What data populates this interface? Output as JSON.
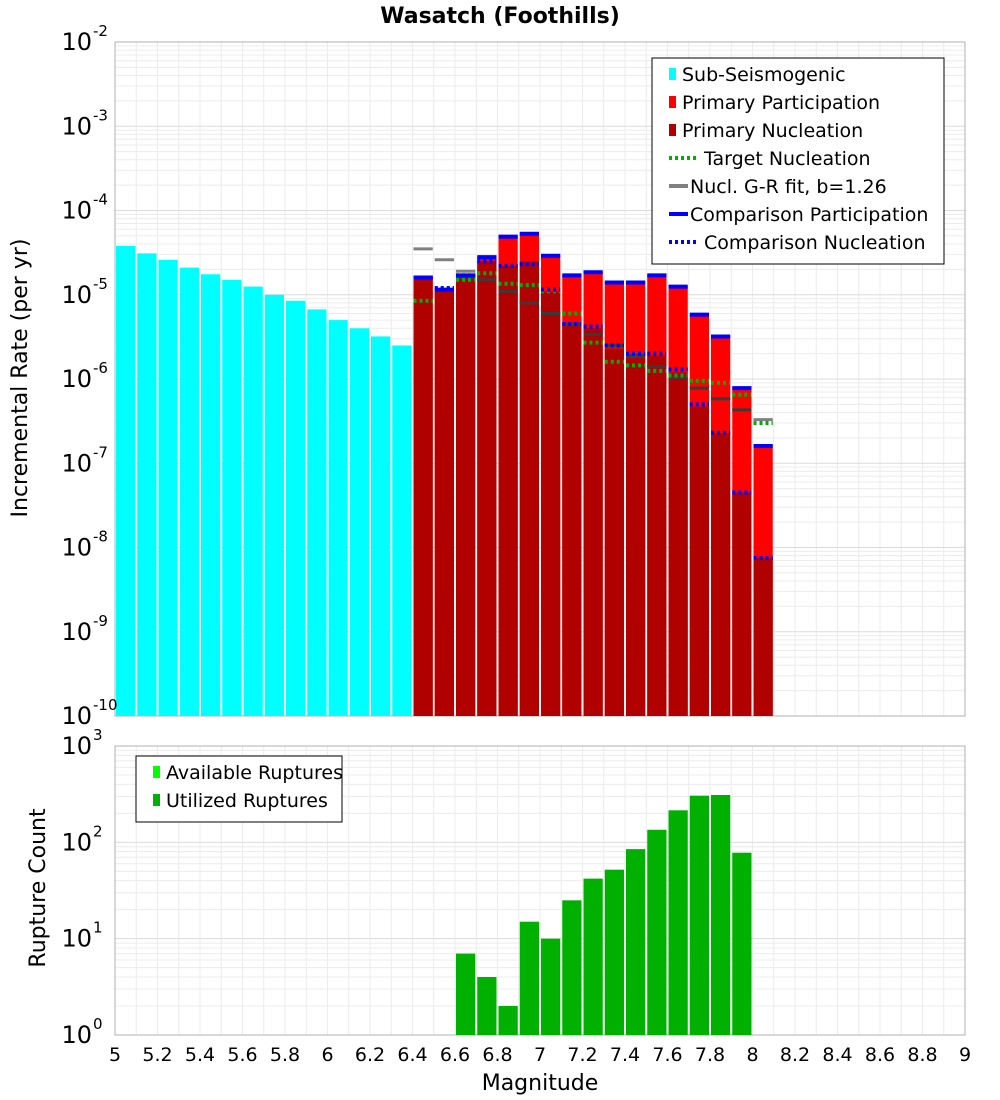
{
  "chart_data": [
    {
      "type": "bar",
      "title": "Wasatch (Foothills)",
      "xlabel": "",
      "ylabel": "Incremental Rate (per yr)",
      "y_scale": "log",
      "ylim": [
        1e-10,
        0.01
      ],
      "xlim": [
        5,
        9
      ],
      "bin_width": 0.1,
      "y_ticks": [
        {
          "base": "10",
          "exp": "-10"
        },
        {
          "base": "10",
          "exp": "-9"
        },
        {
          "base": "10",
          "exp": "-8"
        },
        {
          "base": "10",
          "exp": "-7"
        },
        {
          "base": "10",
          "exp": "-6"
        },
        {
          "base": "10",
          "exp": "-5"
        },
        {
          "base": "10",
          "exp": "-4"
        },
        {
          "base": "10",
          "exp": "-3"
        },
        {
          "base": "10",
          "exp": "-2"
        }
      ],
      "legend_position": "top-right",
      "legend": [
        {
          "label": "Sub-Seismogenic",
          "color": "#00ffff",
          "style": "bar"
        },
        {
          "label": "Primary Participation",
          "color": "#ff0000",
          "style": "bar"
        },
        {
          "label": "Primary Nucleation",
          "color": "#b00000",
          "style": "bar"
        },
        {
          "label": "Target Nucleation",
          "color": "#00b000",
          "style": "dotted"
        },
        {
          "label": "Nucl. G-R fit, b=1.26",
          "color": "#808080",
          "style": "solid"
        },
        {
          "label": "Comparison Participation",
          "color": "#0000ff",
          "style": "solid"
        },
        {
          "label": "Comparison Nucleation",
          "color": "#0000ff",
          "style": "dotted"
        }
      ],
      "series": [
        {
          "name": "Sub-Seismogenic",
          "x": [
            5.0,
            5.1,
            5.2,
            5.3,
            5.4,
            5.5,
            5.6,
            5.7,
            5.8,
            5.9,
            6.0,
            6.1,
            6.2,
            6.3
          ],
          "values": [
            3.8e-05,
            3.1e-05,
            2.6e-05,
            2.1e-05,
            1.75e-05,
            1.5e-05,
            1.25e-05,
            1e-05,
            8.5e-06,
            6.7e-06,
            5e-06,
            4e-06,
            3.2e-06,
            2.5e-06
          ]
        },
        {
          "name": "Primary Participation",
          "x": [
            6.4,
            6.5,
            6.6,
            6.7,
            6.8,
            6.9,
            7.0,
            7.1,
            7.2,
            7.3,
            7.4,
            7.5,
            7.6,
            7.7,
            7.8,
            7.9,
            8.0
          ],
          "values": [
            1.6e-05,
            1.15e-05,
            1.7e-05,
            2.8e-05,
            4.9e-05,
            5.3e-05,
            2.9e-05,
            1.7e-05,
            1.85e-05,
            1.4e-05,
            1.4e-05,
            1.7e-05,
            1.25e-05,
            5.8e-06,
            3.2e-06,
            7.8e-07,
            1.6e-07
          ]
        },
        {
          "name": "Primary Nucleation",
          "x": [
            6.4,
            6.5,
            6.6,
            6.7,
            6.8,
            6.9,
            7.0,
            7.1,
            7.2,
            7.3,
            7.4,
            7.5,
            7.6,
            7.7,
            7.8,
            7.9,
            8.0
          ],
          "values": [
            1.6e-05,
            1.1e-05,
            1.6e-05,
            2.5e-05,
            2.2e-05,
            2.5e-05,
            1.1e-05,
            4.3e-06,
            4e-06,
            2.3e-06,
            1.8e-06,
            1.9e-06,
            1.2e-06,
            4.7e-07,
            2.3e-07,
            4.5e-08,
            7.5e-09
          ]
        },
        {
          "name": "Target Nucleation",
          "x": [
            6.4,
            6.5,
            6.6,
            6.7,
            6.8,
            6.9,
            7.0,
            7.1,
            7.2,
            7.3,
            7.4,
            7.5,
            7.6,
            7.7,
            7.8,
            7.9,
            8.0
          ],
          "values": [
            8.5e-06,
            1.2e-05,
            1.5e-05,
            1.8e-05,
            1.35e-05,
            1.3e-05,
            1.1e-05,
            6e-06,
            2.7e-06,
            1.6e-06,
            1.45e-06,
            1.25e-06,
            1.1e-06,
            9.5e-07,
            9e-07,
            6.5e-07,
            3e-07
          ]
        },
        {
          "name": "Nucl. G-R fit, b=1.26",
          "x": [
            6.4,
            6.5,
            6.6,
            6.7,
            6.8,
            6.9,
            7.0,
            7.1,
            7.2,
            7.3,
            7.4,
            7.5,
            7.6,
            7.7,
            7.8,
            7.9,
            8.0
          ],
          "values": [
            3.5e-05,
            2.6e-05,
            1.9e-05,
            1.5e-05,
            1.1e-05,
            8e-06,
            6e-06,
            4.5e-06,
            3.4e-06,
            2.5e-06,
            1.9e-06,
            1.4e-06,
            1.05e-06,
            7.8e-07,
            5.8e-07,
            4.3e-07,
            3.3e-07
          ]
        },
        {
          "name": "Comparison Participation",
          "x": [
            6.4,
            6.5,
            6.6,
            6.7,
            6.8,
            6.9,
            7.0,
            7.1,
            7.2,
            7.3,
            7.4,
            7.5,
            7.6,
            7.7,
            7.8,
            7.9,
            8.0
          ],
          "values": [
            1.6e-05,
            1.15e-05,
            1.7e-05,
            2.8e-05,
            4.9e-05,
            5.3e-05,
            2.9e-05,
            1.7e-05,
            1.85e-05,
            1.4e-05,
            1.4e-05,
            1.7e-05,
            1.25e-05,
            5.8e-06,
            3.2e-06,
            7.8e-07,
            1.6e-07
          ]
        },
        {
          "name": "Comparison Nucleation",
          "x": [
            6.4,
            6.5,
            6.6,
            6.7,
            6.8,
            6.9,
            7.0,
            7.1,
            7.2,
            7.3,
            7.4,
            7.5,
            7.6,
            7.7,
            7.8,
            7.9,
            8.0
          ],
          "values": [
            1.6e-05,
            1.2e-05,
            1.7e-05,
            2.5e-05,
            2.2e-05,
            2.3e-05,
            1.15e-05,
            4.5e-06,
            4.2e-06,
            2.5e-06,
            2e-06,
            2e-06,
            1.3e-06,
            5e-07,
            2.3e-07,
            4.5e-08,
            7.5e-09
          ]
        }
      ]
    },
    {
      "type": "bar",
      "title": "",
      "xlabel": "Magnitude",
      "ylabel": "Rupture Count",
      "y_scale": "log",
      "ylim": [
        1,
        1000
      ],
      "xlim": [
        5,
        9
      ],
      "bin_width": 0.1,
      "x_ticks": [
        "5",
        "5.2",
        "5.4",
        "5.6",
        "5.8",
        "6",
        "6.2",
        "6.4",
        "6.6",
        "6.8",
        "7",
        "7.2",
        "7.4",
        "7.6",
        "7.8",
        "8",
        "8.2",
        "8.4",
        "8.6",
        "8.8",
        "9"
      ],
      "y_ticks": [
        {
          "base": "10",
          "exp": "0"
        },
        {
          "base": "10",
          "exp": "1"
        },
        {
          "base": "10",
          "exp": "2"
        },
        {
          "base": "10",
          "exp": "3"
        }
      ],
      "legend_position": "top-left",
      "legend": [
        {
          "label": "Available Ruptures",
          "color": "#00ff00",
          "style": "bar"
        },
        {
          "label": "Utilized Ruptures",
          "color": "#00b000",
          "style": "bar"
        }
      ],
      "series": [
        {
          "name": "Utilized Ruptures",
          "x": [
            6.5,
            6.6,
            6.7,
            6.8,
            6.9,
            7.0,
            7.1,
            7.2,
            7.3,
            7.4,
            7.5,
            7.6,
            7.7,
            7.8,
            7.9
          ],
          "values": [
            1,
            7,
            4,
            2,
            15,
            10,
            25,
            42,
            52,
            85,
            135,
            215,
            305,
            310,
            78
          ]
        }
      ]
    }
  ]
}
